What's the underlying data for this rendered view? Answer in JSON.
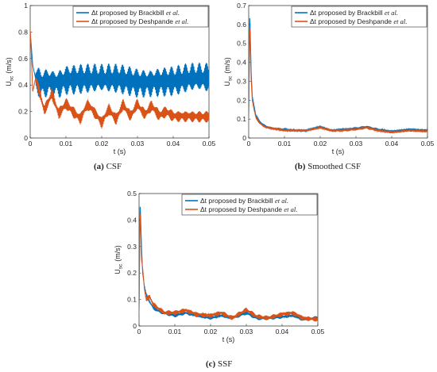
{
  "colors": {
    "series1": "#0072BD",
    "series2": "#D95319"
  },
  "captions": [
    {
      "letter": "(a)",
      "text": "CSF"
    },
    {
      "letter": "(b)",
      "text": "Smoothed CSF"
    },
    {
      "letter": "(c)",
      "text": "SSF"
    }
  ],
  "chart_data": [
    {
      "type": "line",
      "title": "",
      "xlabel": "t (s)",
      "ylabel": "U",
      "ylabel_sub": "sc",
      "ylabel_unit": "(m/s)",
      "xlim": [
        0,
        0.05
      ],
      "ylim": [
        0,
        1
      ],
      "xticks": [
        "0",
        "0.01",
        "0.02",
        "0.03",
        "0.04",
        "0.05"
      ],
      "yticks": [
        "0",
        "0.2",
        "0.4",
        "0.6",
        "0.8",
        "1"
      ],
      "legend": {
        "position": "top-right"
      },
      "series": [
        {
          "name": "Δt proposed by Brackbill",
          "name_suffix": "et al.",
          "color": "#0072BD",
          "x": [
            0,
            0.0003,
            0.0007,
            0.0015,
            0.003,
            0.005,
            0.008,
            0.01,
            0.015,
            0.02,
            0.025,
            0.03,
            0.035,
            0.04,
            0.045,
            0.05
          ],
          "y": [
            0.8,
            0.7,
            0.55,
            0.45,
            0.42,
            0.44,
            0.43,
            0.45,
            0.44,
            0.43,
            0.44,
            0.43,
            0.44,
            0.43,
            0.44,
            0.44
          ],
          "oscillation": 0.13
        },
        {
          "name": "Δt proposed by Deshpande",
          "name_suffix": "et al.",
          "color": "#D95319",
          "x": [
            0,
            0.0003,
            0.0007,
            0.0015,
            0.003,
            0.004,
            0.006,
            0.008,
            0.01,
            0.012,
            0.014,
            0.016,
            0.018,
            0.02,
            0.022,
            0.024,
            0.026,
            0.028,
            0.03,
            0.032,
            0.034,
            0.036,
            0.038,
            0.04,
            0.045,
            0.05
          ],
          "y": [
            0.82,
            0.65,
            0.35,
            0.45,
            0.3,
            0.2,
            0.33,
            0.18,
            0.26,
            0.2,
            0.15,
            0.26,
            0.2,
            0.12,
            0.22,
            0.14,
            0.25,
            0.16,
            0.25,
            0.17,
            0.24,
            0.17,
            0.2,
            0.17,
            0.17,
            0.16
          ],
          "oscillation": 0.05
        }
      ]
    },
    {
      "type": "line",
      "title": "",
      "xlabel": "t (s)",
      "ylabel": "U",
      "ylabel_sub": "sc",
      "ylabel_unit": "(m/s)",
      "xlim": [
        0,
        0.05
      ],
      "ylim": [
        0,
        0.7
      ],
      "xticks": [
        "0",
        "0.01",
        "0.02",
        "0.03",
        "0.04",
        "0.05"
      ],
      "yticks": [
        "0",
        "0.1",
        "0.2",
        "0.3",
        "0.4",
        "0.5",
        "0.6",
        "0.7"
      ],
      "legend": {
        "position": "top-right"
      },
      "series": [
        {
          "name": "Δt proposed by Brackbill",
          "name_suffix": "et al.",
          "color": "#0072BD",
          "x": [
            0,
            0.0003,
            0.0007,
            0.001,
            0.0015,
            0.002,
            0.003,
            0.004,
            0.005,
            0.007,
            0.01,
            0.013,
            0.016,
            0.02,
            0.023,
            0.026,
            0.03,
            0.033,
            0.036,
            0.04,
            0.045,
            0.05
          ],
          "y": [
            0.1,
            0.66,
            0.35,
            0.22,
            0.17,
            0.12,
            0.09,
            0.07,
            0.06,
            0.05,
            0.045,
            0.04,
            0.04,
            0.06,
            0.04,
            0.045,
            0.05,
            0.06,
            0.045,
            0.035,
            0.045,
            0.04
          ],
          "oscillation": 0.006
        },
        {
          "name": "Δt proposed by Deshpande",
          "name_suffix": "et al.",
          "color": "#D95319",
          "x": [
            0,
            0.0003,
            0.0007,
            0.001,
            0.0015,
            0.002,
            0.003,
            0.004,
            0.005,
            0.007,
            0.01,
            0.013,
            0.016,
            0.02,
            0.023,
            0.026,
            0.03,
            0.033,
            0.036,
            0.04,
            0.045,
            0.05
          ],
          "y": [
            0.1,
            0.6,
            0.3,
            0.2,
            0.15,
            0.11,
            0.08,
            0.065,
            0.055,
            0.05,
            0.04,
            0.04,
            0.04,
            0.055,
            0.04,
            0.04,
            0.045,
            0.055,
            0.04,
            0.03,
            0.04,
            0.035
          ],
          "oscillation": 0.006
        }
      ]
    },
    {
      "type": "line",
      "title": "",
      "xlabel": "t (s)",
      "ylabel": "U",
      "ylabel_sub": "sc",
      "ylabel_unit": "(m/s)",
      "xlim": [
        0,
        0.05
      ],
      "ylim": [
        0,
        0.5
      ],
      "xticks": [
        "0",
        "0.01",
        "0.02",
        "0.03",
        "0.04",
        "0.05"
      ],
      "yticks": [
        "0",
        "0.1",
        "0.2",
        "0.3",
        "0.4",
        "0.5"
      ],
      "legend": {
        "position": "top-right"
      },
      "series": [
        {
          "name": "Δt proposed by Brackbill",
          "name_suffix": "et al.",
          "color": "#0072BD",
          "x": [
            0,
            0.0003,
            0.0007,
            0.001,
            0.0015,
            0.002,
            0.003,
            0.004,
            0.005,
            0.007,
            0.01,
            0.013,
            0.016,
            0.02,
            0.023,
            0.026,
            0.03,
            0.033,
            0.036,
            0.04,
            0.043,
            0.046,
            0.05
          ],
          "y": [
            0.05,
            0.47,
            0.3,
            0.2,
            0.15,
            0.12,
            0.09,
            0.07,
            0.06,
            0.05,
            0.04,
            0.05,
            0.04,
            0.03,
            0.04,
            0.03,
            0.05,
            0.03,
            0.03,
            0.035,
            0.04,
            0.025,
            0.03
          ],
          "oscillation": 0.008
        },
        {
          "name": "Δt proposed by Deshpande",
          "name_suffix": "et al.",
          "color": "#D95319",
          "x": [
            0,
            0.0003,
            0.0007,
            0.001,
            0.0015,
            0.002,
            0.003,
            0.004,
            0.005,
            0.007,
            0.01,
            0.013,
            0.016,
            0.02,
            0.023,
            0.026,
            0.03,
            0.033,
            0.036,
            0.04,
            0.043,
            0.046,
            0.05
          ],
          "y": [
            0.05,
            0.44,
            0.25,
            0.22,
            0.14,
            0.1,
            0.11,
            0.08,
            0.07,
            0.05,
            0.05,
            0.06,
            0.045,
            0.04,
            0.05,
            0.03,
            0.06,
            0.035,
            0.03,
            0.045,
            0.05,
            0.03,
            0.025
          ],
          "oscillation": 0.01
        }
      ]
    }
  ]
}
